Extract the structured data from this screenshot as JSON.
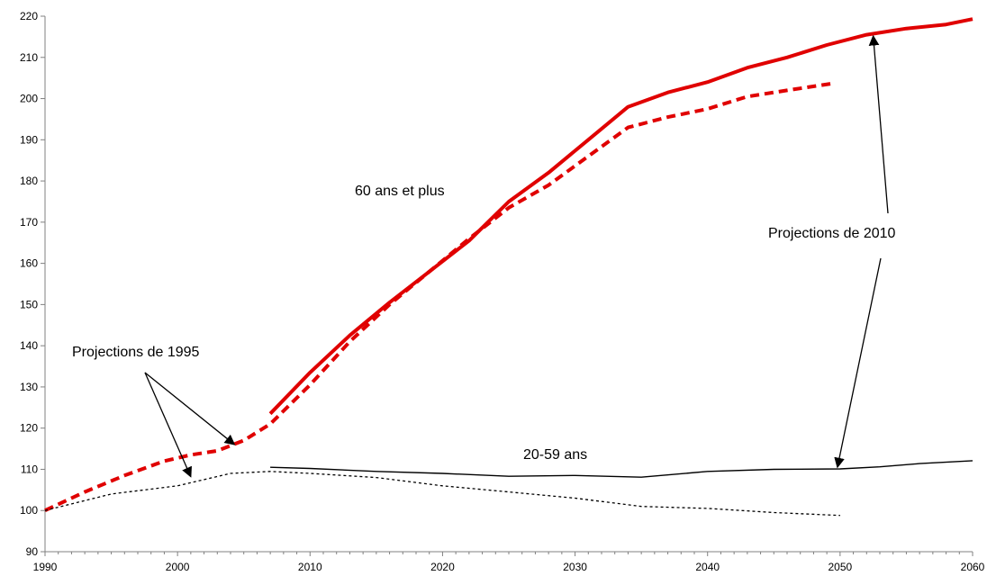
{
  "chart_data": {
    "type": "line",
    "title": "",
    "xlabel": "",
    "ylabel": "",
    "xlim": [
      1990,
      2060
    ],
    "ylim": [
      90,
      220
    ],
    "x_ticks": [
      "1990",
      "2000",
      "2010",
      "2020",
      "2030",
      "2040",
      "2050",
      "2060"
    ],
    "y_ticks": [
      "90",
      "100",
      "110",
      "120",
      "130",
      "140",
      "150",
      "160",
      "170",
      "180",
      "190",
      "200",
      "210",
      "220"
    ],
    "grid": false,
    "legend": "none",
    "series": [
      {
        "group": "60 ans et plus",
        "projection": "1995",
        "style": "dashed",
        "color": "#e00000",
        "x": [
          1990,
          1993,
          1996,
          1999,
          2001,
          2003,
          2005,
          2007,
          2010,
          2013,
          2016,
          2019,
          2022,
          2025,
          2028,
          2031,
          2034,
          2037,
          2040,
          2043,
          2046,
          2049.5
        ],
        "y": [
          100,
          104.5,
          108.5,
          112,
          113.5,
          114.5,
          117,
          121,
          130.5,
          141,
          150,
          158,
          166,
          173.5,
          179,
          186,
          193,
          195.5,
          197.5,
          200.5,
          202,
          203.7
        ]
      },
      {
        "group": "60 ans et plus",
        "projection": "2010",
        "style": "solid",
        "color": "#e00000",
        "x": [
          2007,
          2010,
          2013,
          2016,
          2019,
          2022,
          2025,
          2028,
          2031,
          2034,
          2037,
          2040,
          2043,
          2046,
          2049,
          2052,
          2055,
          2058,
          2060
        ],
        "y": [
          123.5,
          133.5,
          142.5,
          150.5,
          158,
          165.5,
          175,
          182,
          190,
          198,
          201.5,
          204,
          207.5,
          210,
          213,
          215.5,
          217,
          218,
          219.3
        ]
      },
      {
        "group": "20-59 ans",
        "projection": "1995",
        "style": "dotted",
        "color": "#000000",
        "x": [
          1990,
          1995,
          2000,
          2004,
          2007,
          2010,
          2015,
          2020,
          2025,
          2030,
          2035,
          2040,
          2045,
          2050
        ],
        "y": [
          100,
          104,
          106,
          109,
          109.5,
          109,
          108,
          106,
          104.5,
          103,
          101,
          100.5,
          99.5,
          98.8
        ]
      },
      {
        "group": "20-59 ans",
        "projection": "2010",
        "style": "solid",
        "color": "#000000",
        "x": [
          2007,
          2010,
          2015,
          2020,
          2025,
          2030,
          2035,
          2040,
          2045,
          2050,
          2053,
          2056,
          2060
        ],
        "y": [
          110.5,
          110.2,
          109.5,
          109,
          108.3,
          108.5,
          108.1,
          109.5,
          110,
          110.1,
          110.6,
          111.4,
          112.1
        ]
      }
    ],
    "annotations": {
      "label_60": "60 ans et plus",
      "label_20_59": "20-59 ans",
      "label_proj_1995": "Projections de 1995",
      "label_proj_2010": "Projections de 2010"
    },
    "arrows": [
      {
        "from_label": "Projections de 1995",
        "to": [
          2004.3,
          116
        ]
      },
      {
        "from_label": "Projections de 1995",
        "to": [
          2001,
          108.2
        ]
      },
      {
        "from_label": "Projections de 2010",
        "to": [
          2052.5,
          215.2
        ]
      },
      {
        "from_label": "Projections de 2010",
        "to": [
          2049.8,
          110.5
        ]
      }
    ]
  }
}
